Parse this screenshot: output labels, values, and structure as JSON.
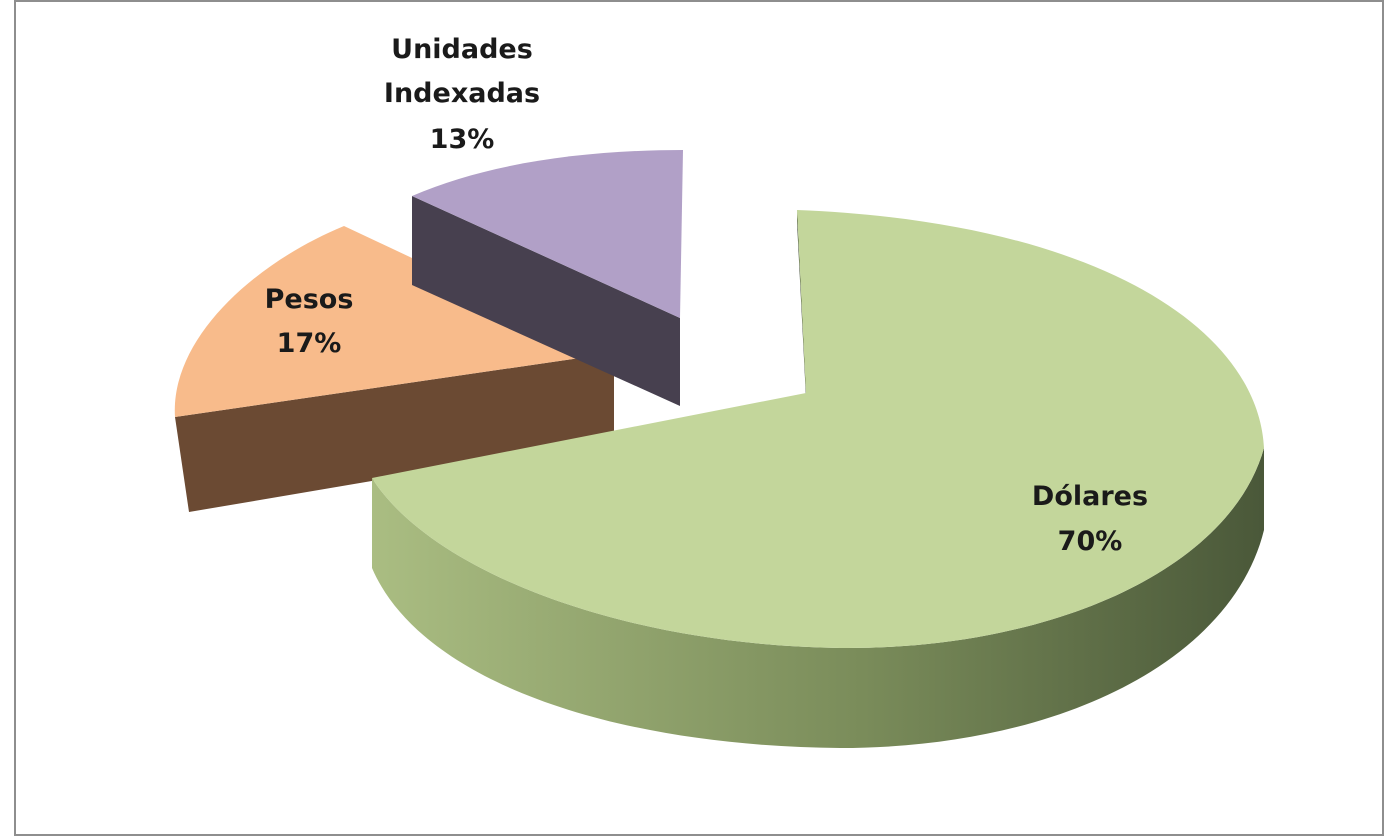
{
  "chart_data": {
    "type": "pie",
    "style": "3d-exploded",
    "title": "",
    "legend": "none",
    "slices": [
      {
        "label": "Dólares",
        "value": 70,
        "value_label": "70%",
        "color_top": "#c3d69b",
        "color_side_light": "#a8ba80",
        "color_side_dark": "#4f5e3d"
      },
      {
        "label": "Unidades Indexadas",
        "value": 13,
        "value_label": "13%",
        "color_top": "#b1a0c7",
        "color_side_light": "#4a4456",
        "color_side_dark": "#3f3a4a"
      },
      {
        "label": "Pesos",
        "value": 17,
        "value_label": "17%",
        "color_top": "#f8bb8b",
        "color_side_light": "#6b4a33",
        "color_side_dark": "#5a3d2a"
      }
    ]
  },
  "labels": {
    "unidades_line1": "Unidades",
    "unidades_line2": "Indexadas",
    "unidades_pct": "13%",
    "pesos_line1": "Pesos",
    "pesos_pct": "17%",
    "dolares_line1": "Dólares",
    "dolares_pct": "70%"
  }
}
